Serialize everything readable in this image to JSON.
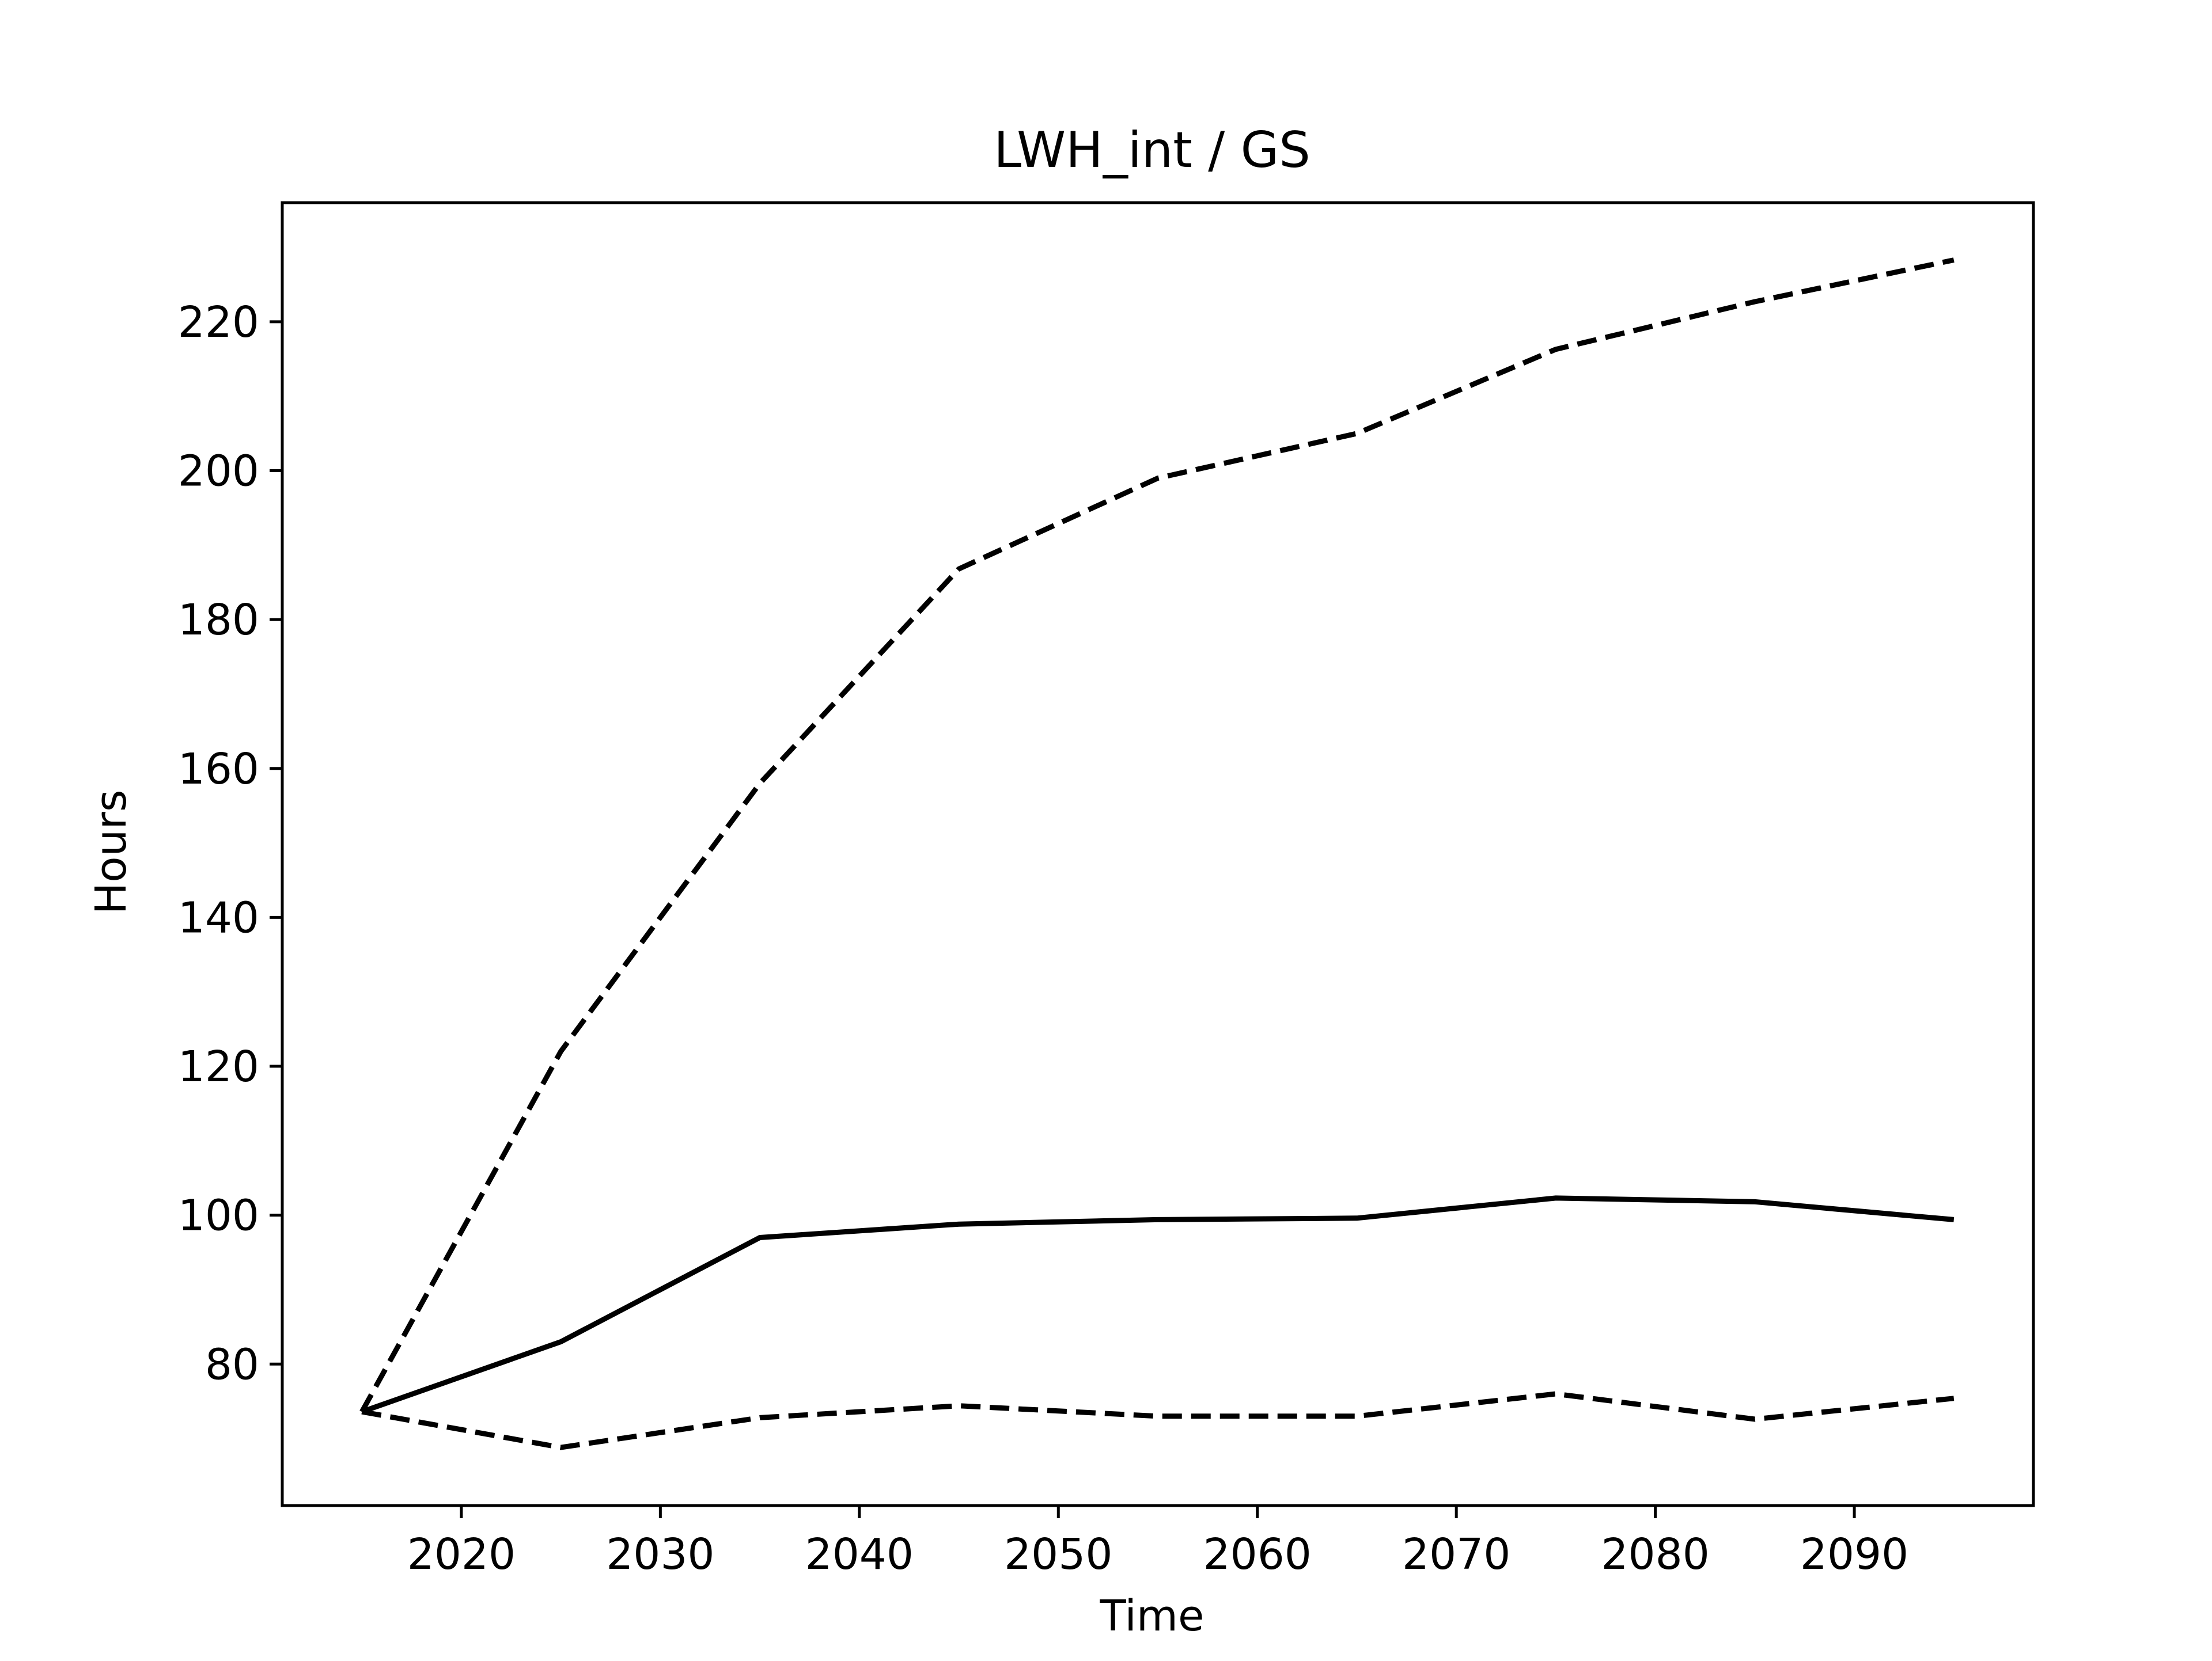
{
  "chart_data": {
    "type": "line",
    "title": "LWH_int / GS",
    "xlabel": "Time",
    "ylabel": "Hours",
    "xlim": [
      2011,
      2099
    ],
    "ylim": [
      61,
      236
    ],
    "xticks": [
      2020,
      2030,
      2040,
      2050,
      2060,
      2070,
      2080,
      2090
    ],
    "yticks": [
      80,
      100,
      120,
      140,
      160,
      180,
      200,
      220
    ],
    "grid": false,
    "legend": "none",
    "x": [
      2015,
      2025,
      2035,
      2045,
      2055,
      2065,
      2075,
      2085,
      2095
    ],
    "series": [
      {
        "style": "solid",
        "color": "#000000",
        "values": [
          73.6,
          83.0,
          97.0,
          98.8,
          99.4,
          99.6,
          102.3,
          101.8,
          99.4
        ]
      },
      {
        "style": "dashed",
        "color": "#000000",
        "values": [
          73.6,
          122.0,
          158.0,
          186.8,
          199.0,
          205.0,
          216.3,
          222.7,
          228.3
        ]
      },
      {
        "style": "dashed",
        "color": "#000000",
        "values": [
          73.6,
          68.8,
          72.8,
          74.4,
          73.0,
          73.0,
          76.0,
          72.6,
          75.4
        ]
      }
    ]
  }
}
